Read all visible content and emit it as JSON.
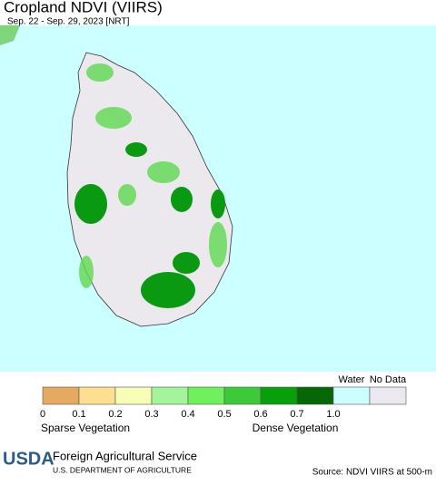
{
  "header": {
    "title": "Cropland NDVI (VIIRS)",
    "subtitle": "Sep. 22 - Sep. 29, 2023 [NRT]"
  },
  "legend": {
    "ticks": [
      "0",
      "0.1",
      "0.2",
      "0.3",
      "0.4",
      "0.5",
      "0.6",
      "0.7",
      "1.0"
    ],
    "water": "Water",
    "no_data": "No Data",
    "sparse": "Sparse Vegetation",
    "dense": "Dense Vegetation"
  },
  "footer": {
    "logo": "USDA",
    "agency": "Foreign Agricultural Service",
    "department": "U.S. DEPARTMENT OF AGRICULTURE",
    "source": "Source: NDVI VIIRS at 500-m"
  }
}
